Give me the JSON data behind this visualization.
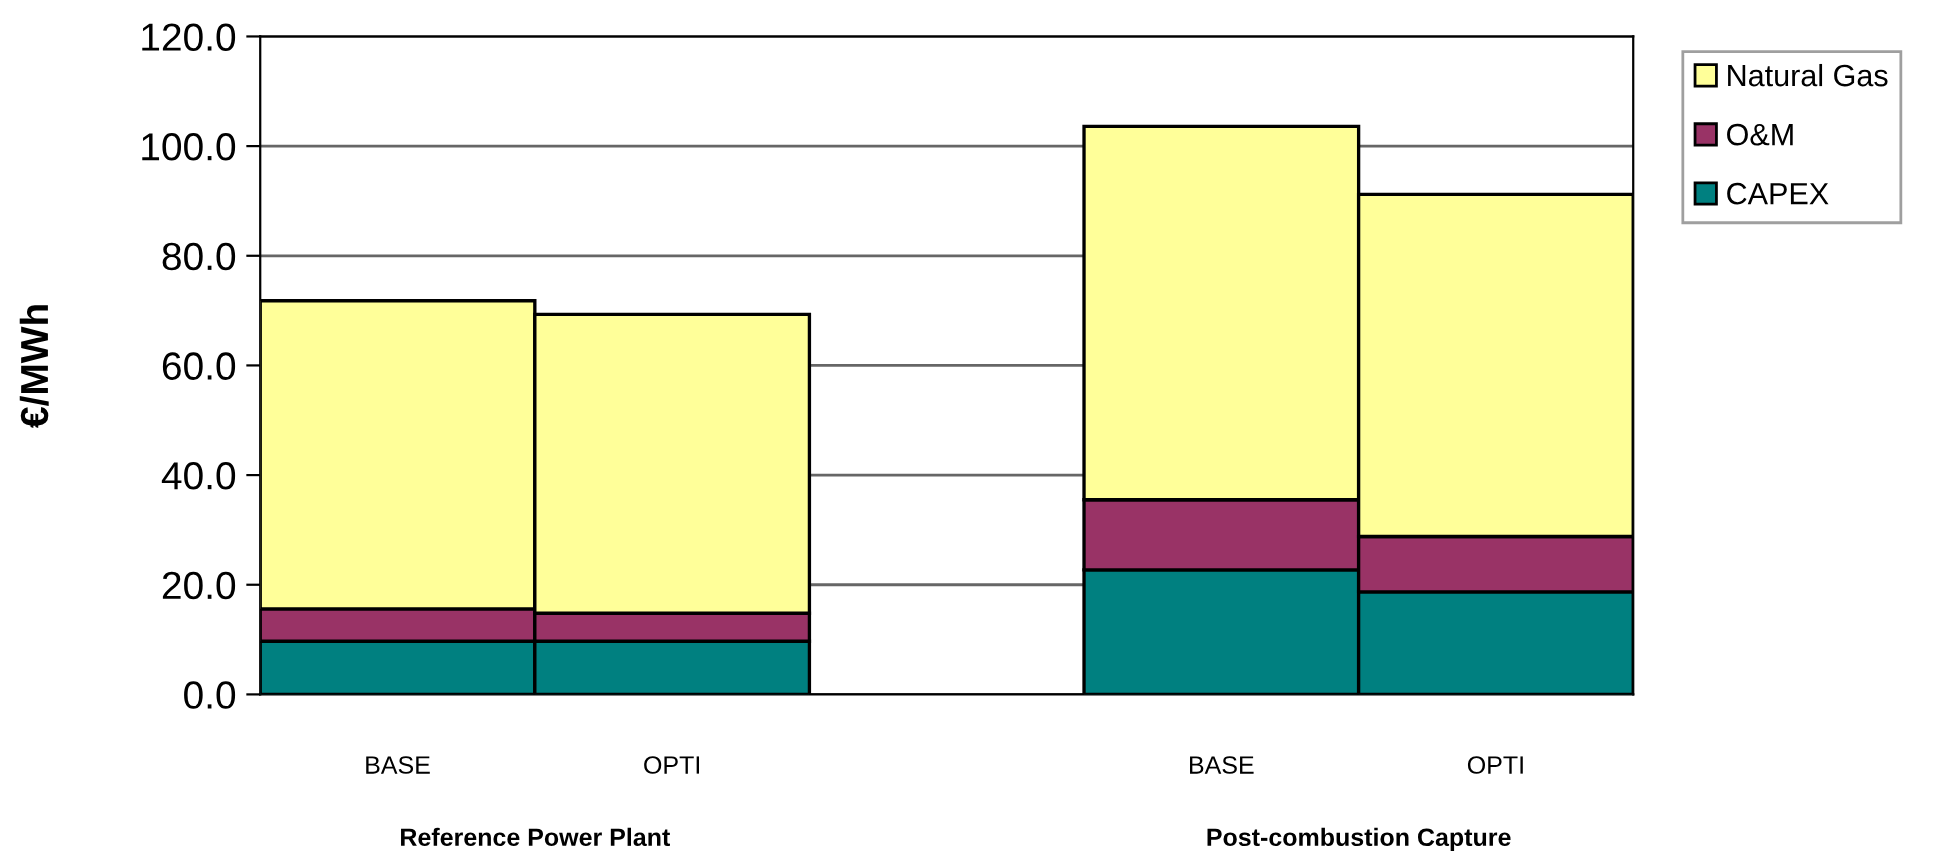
{
  "chart_data": {
    "type": "bar",
    "stacked": true,
    "ylabel": "€/MWh",
    "categories": [
      "BASE",
      "OPTI",
      null,
      "BASE",
      "OPTI"
    ],
    "series": [
      {
        "name": "CAPEX",
        "color": "#008080",
        "values": [
          9.7,
          9.7,
          null,
          22.7,
          18.7
        ]
      },
      {
        "name": "O&M",
        "color": "#993366",
        "values": [
          5.9,
          5.1,
          null,
          12.8,
          10.1
        ]
      },
      {
        "name": "Natural Gas",
        "color": "#ffff99",
        "values": [
          56.2,
          54.5,
          null,
          68.1,
          62.4
        ]
      }
    ],
    "ylim": [
      0,
      120
    ],
    "yticks": [
      {
        "value": 0,
        "label": "0.0"
      },
      {
        "value": 20,
        "label": "20.0"
      },
      {
        "value": 40,
        "label": "40.0"
      },
      {
        "value": 60,
        "label": "60.0"
      },
      {
        "value": 80,
        "label": "80.0"
      },
      {
        "value": 100,
        "label": "100.0"
      },
      {
        "value": 120,
        "label": "120.0"
      }
    ],
    "grid": "y",
    "legend": "top right",
    "annotations": [
      "Reference Power Plant",
      "Post-combustion Capture"
    ]
  }
}
